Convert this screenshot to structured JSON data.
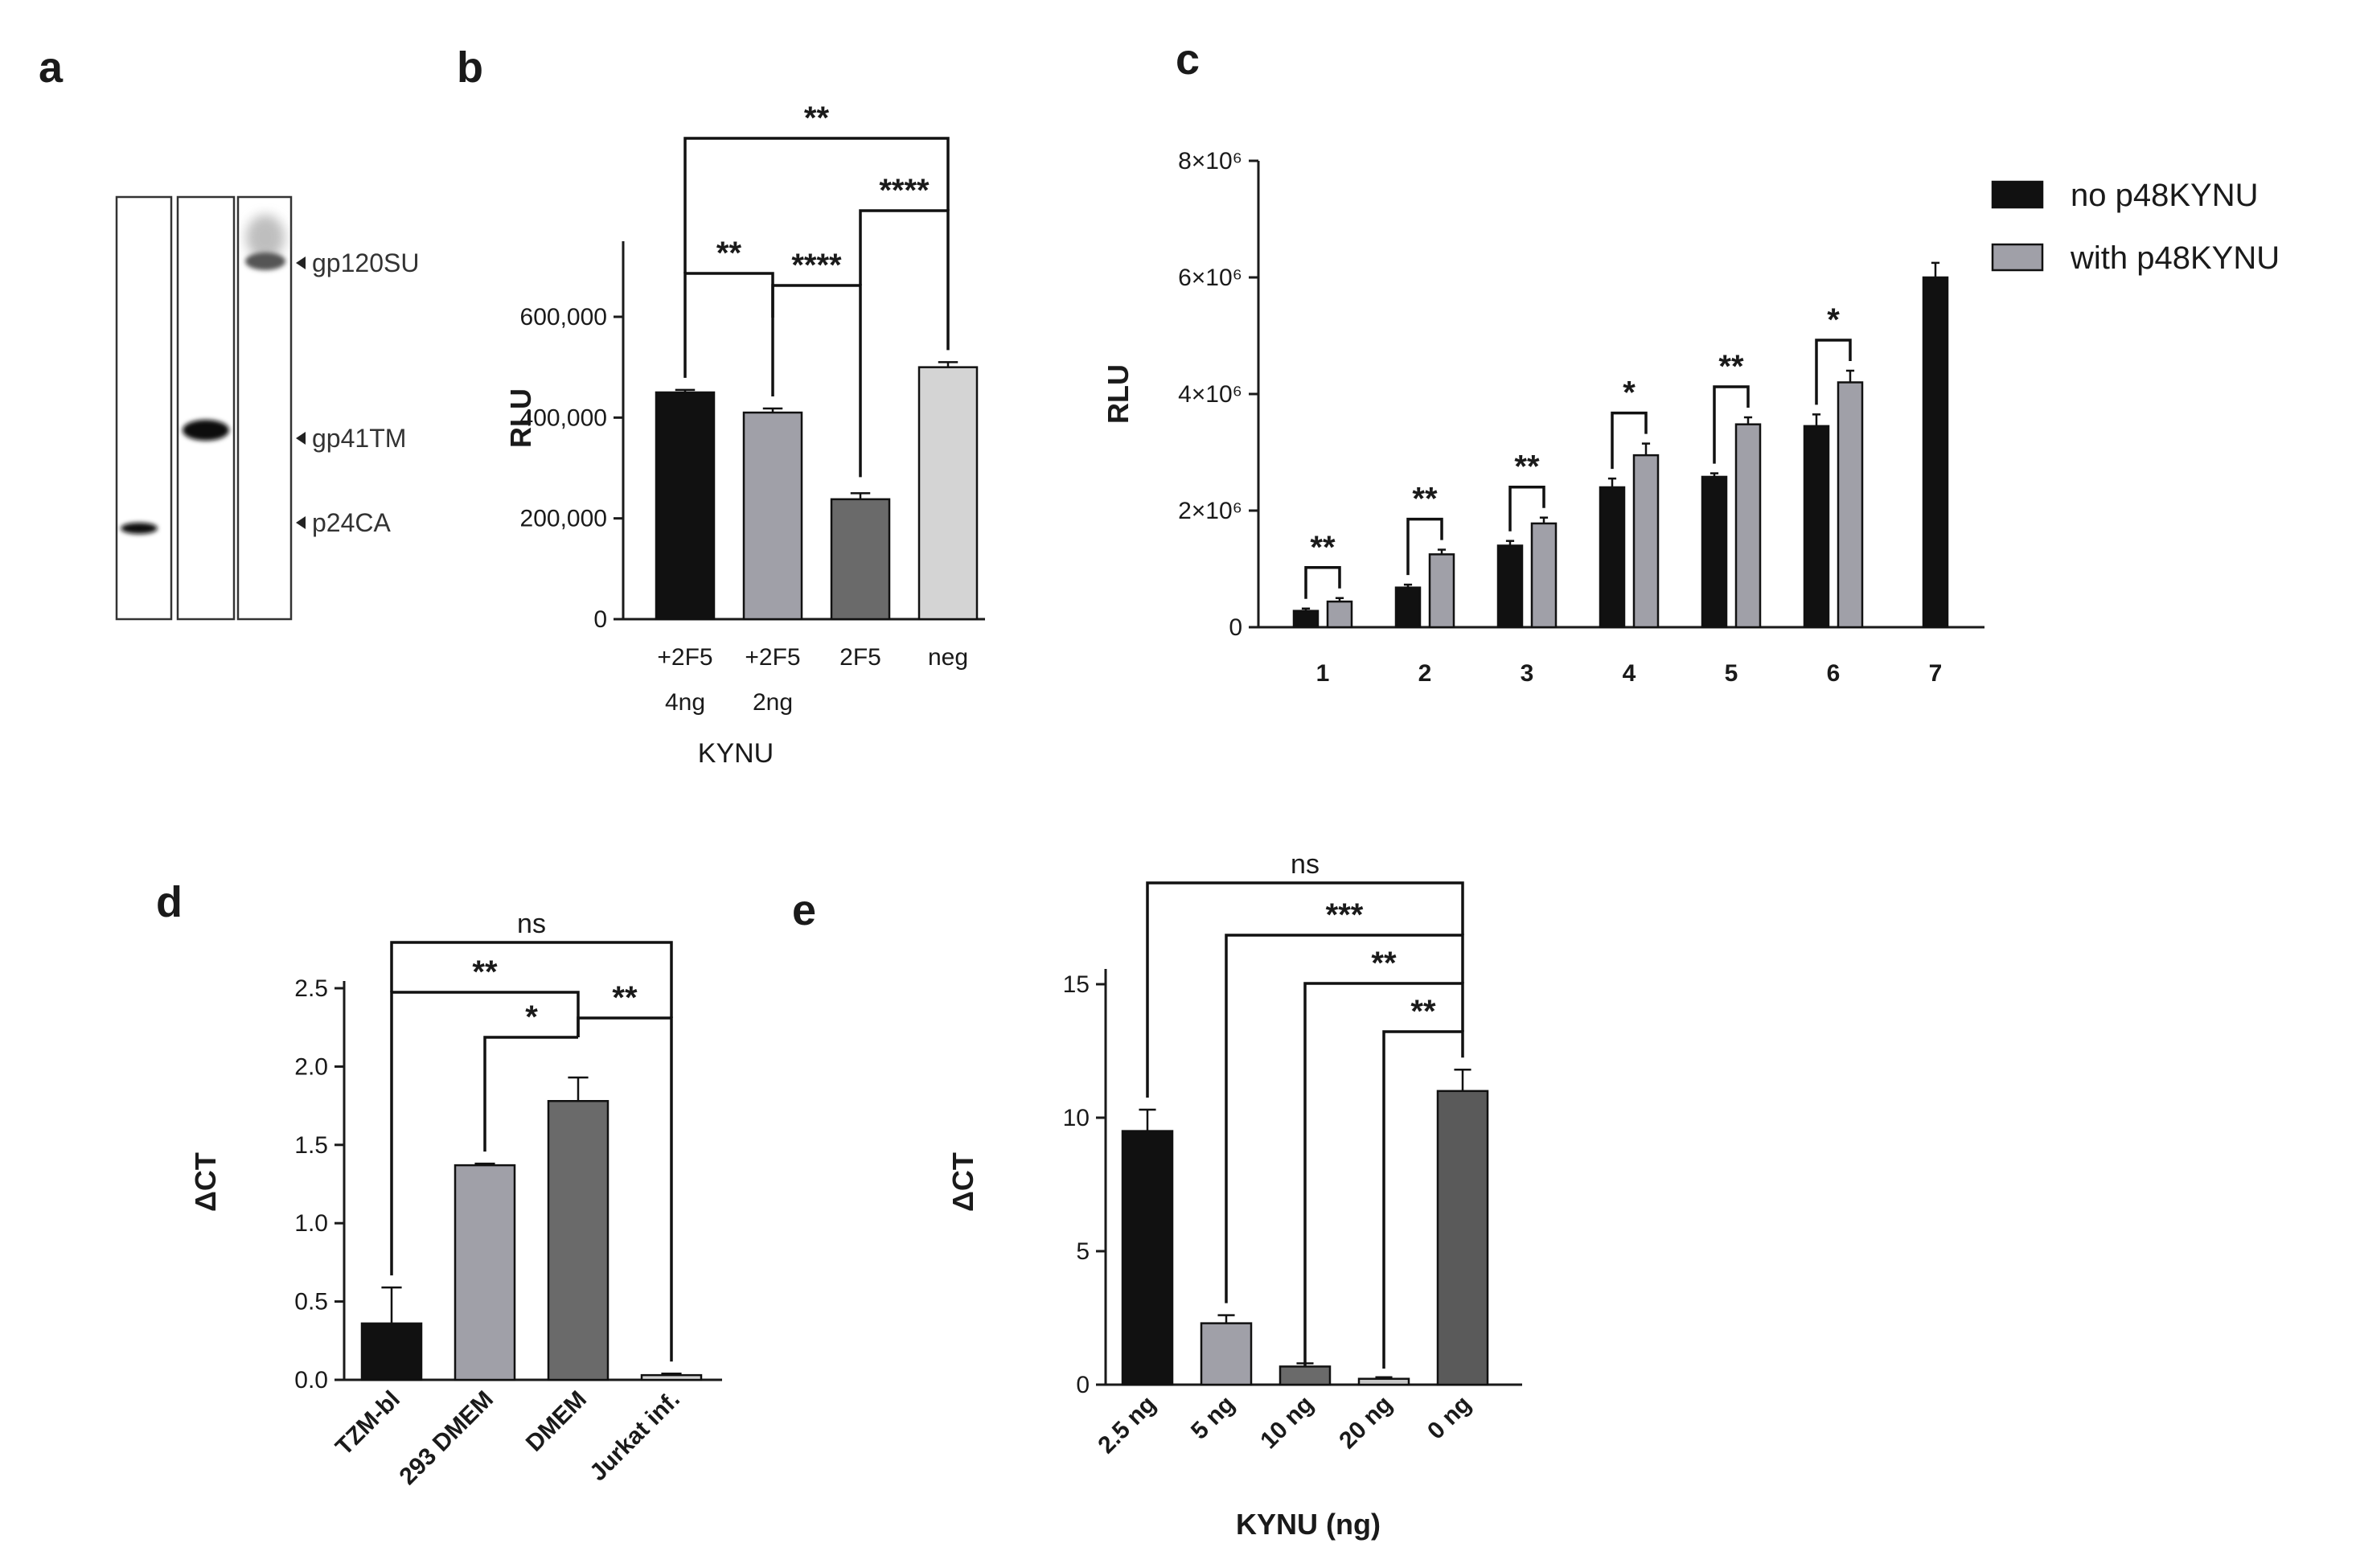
{
  "panels": {
    "a": {
      "letter": "a",
      "band_labels": [
        "gp120SU",
        "gp41TM",
        "p24CA"
      ]
    },
    "b": {
      "letter": "b"
    },
    "c": {
      "letter": "c"
    },
    "d": {
      "letter": "d"
    },
    "e": {
      "letter": "e"
    }
  },
  "colors": {
    "black": "#111111",
    "light_gray": "#a0a0a8",
    "dark_gray": "#6a6a6a",
    "very_light_gray": "#d4d4d4",
    "medium_gray": "#9c9c9c",
    "darker_gray": "#5a5a5a"
  },
  "chart_data": [
    {
      "panel": "b",
      "type": "bar",
      "title": "",
      "ylabel": "RLU",
      "xlabel": "KYNU",
      "ylim": [
        0,
        750000
      ],
      "yticks": [
        0,
        200000,
        400000,
        600000
      ],
      "ytick_labels": [
        "0",
        "200,000",
        "400,000",
        "600,000"
      ],
      "categories": [
        "+2F5",
        "+2F5",
        "2F5",
        "neg"
      ],
      "category_sublabels": [
        "4ng",
        "2ng",
        "",
        ""
      ],
      "values": [
        450000,
        410000,
        238000,
        500000
      ],
      "errors": [
        5000,
        8000,
        12000,
        10000
      ],
      "bar_colors": [
        "#111111",
        "#a0a0a8",
        "#6a6a6a",
        "#d4d4d4"
      ],
      "significance": [
        {
          "from": 0,
          "to": 1,
          "label": "**"
        },
        {
          "from": 1,
          "to": 2,
          "label": "****"
        },
        {
          "from": 2,
          "to": 3,
          "label": "****"
        },
        {
          "from": 0,
          "to": 3,
          "label": "**"
        }
      ]
    },
    {
      "panel": "c",
      "type": "bar",
      "title": "",
      "ylabel": "RLU",
      "xlabel": "",
      "ylim": [
        0,
        8000000
      ],
      "yticks": [
        0,
        2000000,
        4000000,
        6000000,
        8000000
      ],
      "ytick_labels": [
        "0",
        "2×10⁶",
        "4×10⁶",
        "6×10⁶",
        "8×10⁶"
      ],
      "categories": [
        "1",
        "2",
        "3",
        "4",
        "5",
        "6",
        "7"
      ],
      "series": [
        {
          "name": "no p48KYNU",
          "color": "#111111",
          "values": [
            280000,
            680000,
            1400000,
            2400000,
            2580000,
            3450000,
            6000000
          ],
          "errors": [
            40000,
            50000,
            80000,
            150000,
            60000,
            200000,
            250000
          ]
        },
        {
          "name": "with p48KYNU",
          "color": "#a0a0a8",
          "values": [
            440000,
            1250000,
            1780000,
            2950000,
            3480000,
            4200000,
            null
          ],
          "errors": [
            60000,
            80000,
            100000,
            200000,
            120000,
            200000,
            null
          ]
        }
      ],
      "significance": [
        {
          "category": 0,
          "label": "**"
        },
        {
          "category": 1,
          "label": "**"
        },
        {
          "category": 2,
          "label": "**"
        },
        {
          "category": 3,
          "label": "*"
        },
        {
          "category": 4,
          "label": "**"
        },
        {
          "category": 5,
          "label": "*"
        }
      ],
      "legend": "top-right"
    },
    {
      "panel": "d",
      "type": "bar",
      "title": "",
      "ylabel": "ΔCT",
      "xlabel": "",
      "ylim": [
        0,
        2.5
      ],
      "yticks": [
        0,
        0.5,
        1.0,
        1.5,
        2.0,
        2.5
      ],
      "ytick_labels": [
        "0.0",
        "0.5",
        "1.0",
        "1.5",
        "2.0",
        "2.5"
      ],
      "categories": [
        "TZM-bl",
        "293 DMEM",
        "DMEM",
        "Jurkat inf."
      ],
      "values": [
        0.36,
        1.37,
        1.78,
        0.03
      ],
      "errors": [
        0.23,
        0.01,
        0.15,
        0.01
      ],
      "bar_colors": [
        "#111111",
        "#a0a0a8",
        "#6a6a6a",
        "#d4d4d4"
      ],
      "significance": [
        {
          "from": 1,
          "to": 2,
          "label": "*"
        },
        {
          "from": 2,
          "to": 3,
          "label": "**"
        },
        {
          "from": 0,
          "to": 2,
          "label": "**"
        },
        {
          "from": 0,
          "to": 3,
          "label": "ns"
        }
      ]
    },
    {
      "panel": "e",
      "type": "bar",
      "title": "",
      "ylabel": "ΔCT",
      "xlabel": "KYNU (ng)",
      "ylim": [
        0,
        15
      ],
      "yticks": [
        0,
        5,
        10,
        15
      ],
      "ytick_labels": [
        "0",
        "5",
        "10",
        "15"
      ],
      "categories": [
        "2.5 ng",
        "5 ng",
        "10 ng",
        "20 ng",
        "0 ng"
      ],
      "values": [
        9.5,
        2.3,
        0.68,
        0.22,
        11.0
      ],
      "errors": [
        0.8,
        0.3,
        0.12,
        0.06,
        0.8
      ],
      "bar_colors": [
        "#111111",
        "#a0a0a8",
        "#6a6a6a",
        "#c8c8c8",
        "#5a5a5a"
      ],
      "significance": [
        {
          "from": 3,
          "to": 4,
          "label": "**"
        },
        {
          "from": 2,
          "to": 4,
          "label": "**"
        },
        {
          "from": 1,
          "to": 4,
          "label": "***"
        },
        {
          "from": 0,
          "to": 4,
          "label": "ns"
        }
      ]
    }
  ]
}
